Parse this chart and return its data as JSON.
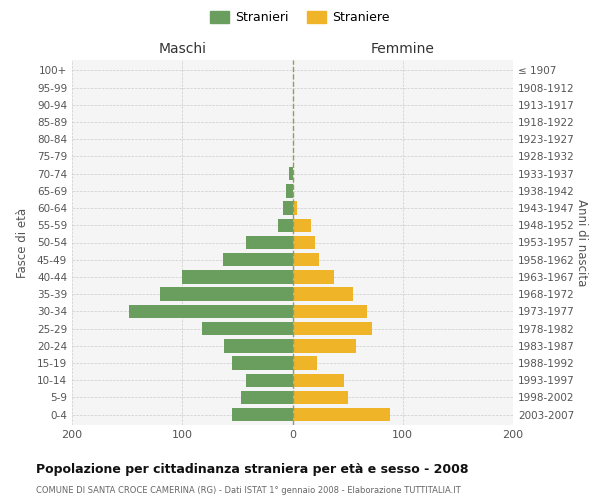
{
  "age_groups": [
    "0-4",
    "5-9",
    "10-14",
    "15-19",
    "20-24",
    "25-29",
    "30-34",
    "35-39",
    "40-44",
    "45-49",
    "50-54",
    "55-59",
    "60-64",
    "65-69",
    "70-74",
    "75-79",
    "80-84",
    "85-89",
    "90-94",
    "95-99",
    "100+"
  ],
  "birth_years": [
    "2003-2007",
    "1998-2002",
    "1993-1997",
    "1988-1992",
    "1983-1987",
    "1978-1982",
    "1973-1977",
    "1968-1972",
    "1963-1967",
    "1958-1962",
    "1953-1957",
    "1948-1952",
    "1943-1947",
    "1938-1942",
    "1933-1937",
    "1928-1932",
    "1923-1927",
    "1918-1922",
    "1913-1917",
    "1908-1912",
    "≤ 1907"
  ],
  "males": [
    55,
    47,
    42,
    55,
    62,
    82,
    148,
    120,
    100,
    63,
    42,
    13,
    9,
    6,
    3,
    0,
    0,
    0,
    0,
    0,
    0
  ],
  "females": [
    88,
    50,
    47,
    22,
    58,
    72,
    68,
    55,
    38,
    24,
    20,
    17,
    4,
    0,
    0,
    0,
    0,
    0,
    0,
    0,
    0
  ],
  "color_males": "#6a9e5e",
  "color_females": "#f0b429",
  "background_color": "#f5f5f5",
  "grid_color": "#cccccc",
  "title_main": "Popolazione per cittadinanza straniera per età e sesso - 2008",
  "title_sub": "COMUNE DI SANTA CROCE CAMERINA (RG) - Dati ISTAT 1° gennaio 2008 - Elaborazione TUTTITALIA.IT",
  "label_maschi": "Maschi",
  "label_femmine": "Femmine",
  "label_fasce": "Fasce di età",
  "label_anni": "Anni di nascita",
  "legend_stranieri": "Stranieri",
  "legend_straniere": "Straniere",
  "xlim": 200
}
